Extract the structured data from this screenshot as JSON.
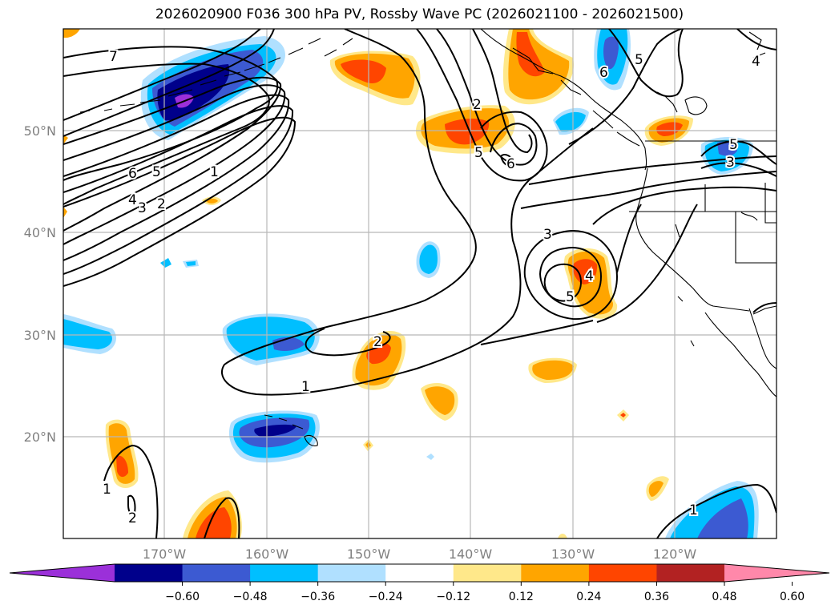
{
  "title": "2026020900 F036 300 hPa PV, Rossby Wave PC (2026021100 - 2026021500)",
  "lon_ticks": [
    "170°W",
    "160°W",
    "150°W",
    "140°W",
    "130°W",
    "120°W"
  ],
  "lat_ticks": [
    "50°N",
    "40°N",
    "30°N",
    "20°N"
  ],
  "colorbar": {
    "labels": [
      "−0.60",
      "−0.48",
      "−0.36",
      "−0.24",
      "−0.12",
      "0.12",
      "0.24",
      "0.36",
      "0.48",
      "0.60"
    ],
    "colors": [
      "#9b30d9",
      "#00008b",
      "#3c5ad2",
      "#00bfff",
      "#b0e0ff",
      "#ffffff",
      "#ffe88a",
      "#ffa500",
      "#ff4500",
      "#b22222",
      "#ff88aa"
    ]
  },
  "contour_labels": [
    "7",
    "6",
    "5",
    "4",
    "3",
    "2",
    "1",
    "2",
    "5",
    "6",
    "5",
    "3",
    "4",
    "5",
    "2",
    "1",
    "3",
    "1",
    "2",
    "1",
    "6",
    "5",
    "4"
  ]
}
